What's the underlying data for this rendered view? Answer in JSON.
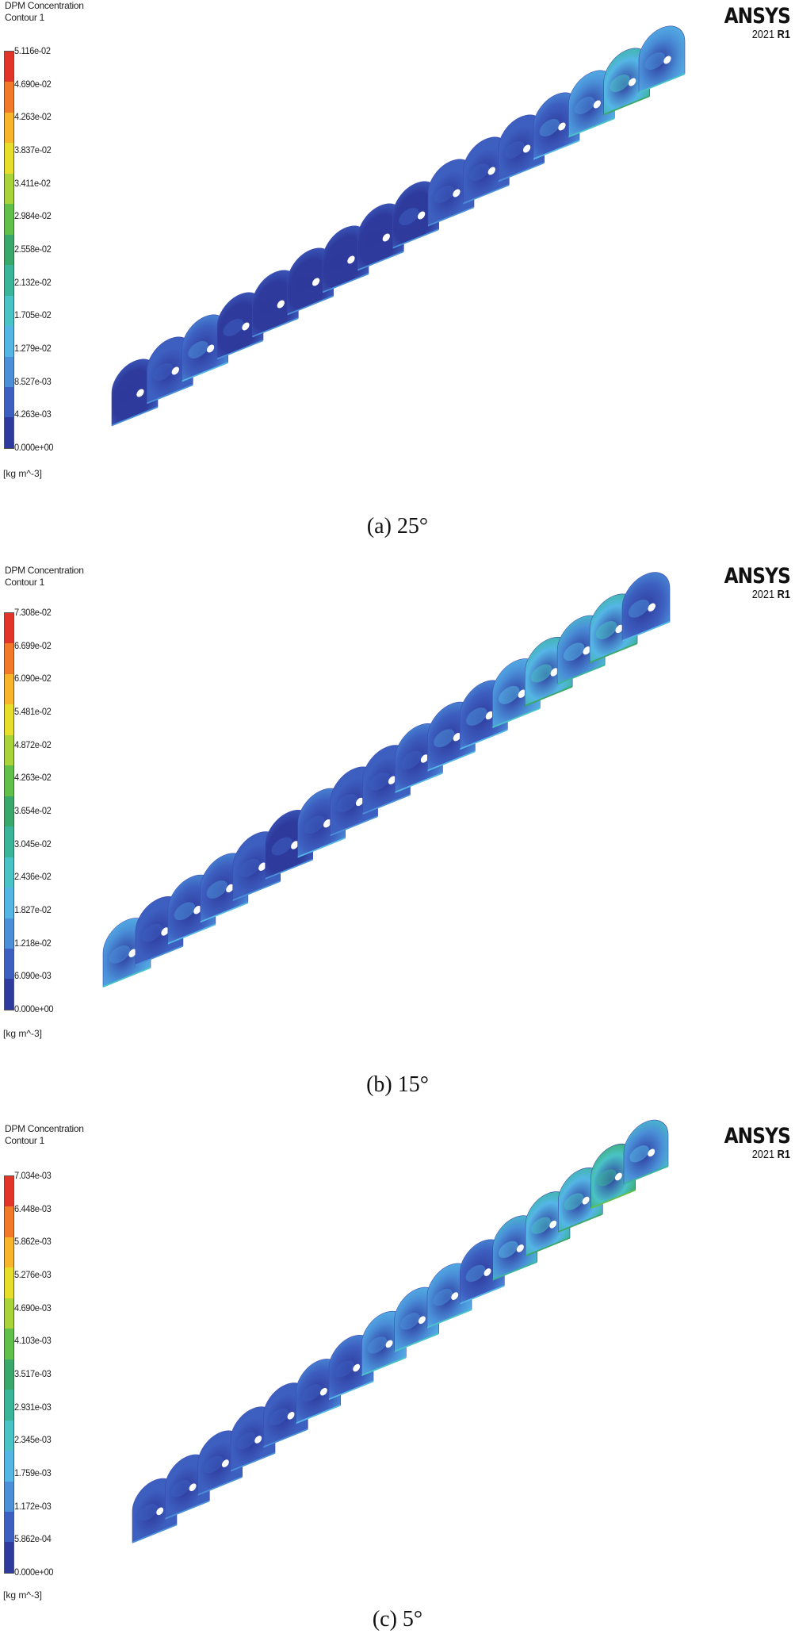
{
  "panels": [
    {
      "legend_title_1": "DPM Concentration",
      "legend_title_2": "Contour 1",
      "ticks": [
        "5.116e-02",
        "4.690e-02",
        "4.263e-02",
        "3.837e-02",
        "3.411e-02",
        "2.984e-02",
        "2.558e-02",
        "2.132e-02",
        "1.705e-02",
        "1.279e-02",
        "8.527e-03",
        "4.263e-03",
        "0.000e+00"
      ],
      "unit": "[kg m^-3]",
      "brand": "ANSYS",
      "version_year": "2021",
      "version_release": "R1",
      "caption": "(a) 25°"
    },
    {
      "legend_title_1": "DPM Concentration",
      "legend_title_2": "Contour 1",
      "ticks": [
        "7.308e-02",
        "6.699e-02",
        "6.090e-02",
        "5.481e-02",
        "4.872e-02",
        "4.263e-02",
        "3.654e-02",
        "3.045e-02",
        "2.436e-02",
        "1.827e-02",
        "1.218e-02",
        "6.090e-03",
        "0.000e+00"
      ],
      "unit": "[kg m^-3]",
      "brand": "ANSYS",
      "version_year": "2021",
      "version_release": "R1",
      "caption": "(b) 15°"
    },
    {
      "legend_title_1": "DPM Concentration",
      "legend_title_2": "Contour 1",
      "ticks": [
        "7.034e-03",
        "6.448e-03",
        "5.862e-03",
        "5.276e-03",
        "4.690e-03",
        "4.103e-03",
        "3.517e-03",
        "2.931e-03",
        "2.345e-03",
        "1.759e-03",
        "1.172e-03",
        "5.862e-04",
        "0.000e+00"
      ],
      "unit": "[kg m^-3]",
      "brand": "ANSYS",
      "version_year": "2021",
      "version_release": "R1",
      "caption": "(c) 5°"
    }
  ],
  "colormap": [
    "#e1352a",
    "#f07a2a",
    "#f6b52a",
    "#e6de2a",
    "#a8d33a",
    "#62bf4a",
    "#3aa868",
    "#3ab59a",
    "#4ac3c6",
    "#55b6e6",
    "#4a8fd8",
    "#3d5fc0",
    "#2e3a9c"
  ],
  "cross_sections": [
    {
      "count": 16,
      "levels": [
        0.6,
        1.0,
        2.2,
        0.8,
        0.6,
        0.5,
        0.6,
        0.6,
        0.7,
        0.9,
        1.0,
        1.0,
        2.2,
        3.0,
        4.5,
        2.5
      ]
    },
    {
      "count": 17,
      "levels": [
        3.0,
        1.2,
        2.0,
        2.2,
        1.0,
        0.8,
        1.6,
        1.2,
        1.4,
        1.8,
        2.2,
        2.4,
        3.2,
        5.0,
        3.6,
        4.6,
        2.4
      ]
    },
    {
      "count": 16,
      "levels": [
        1.0,
        1.2,
        1.4,
        1.2,
        1.4,
        1.6,
        1.8,
        2.6,
        3.0,
        3.0,
        2.4,
        3.6,
        5.0,
        5.2,
        6.0,
        3.8
      ]
    }
  ]
}
